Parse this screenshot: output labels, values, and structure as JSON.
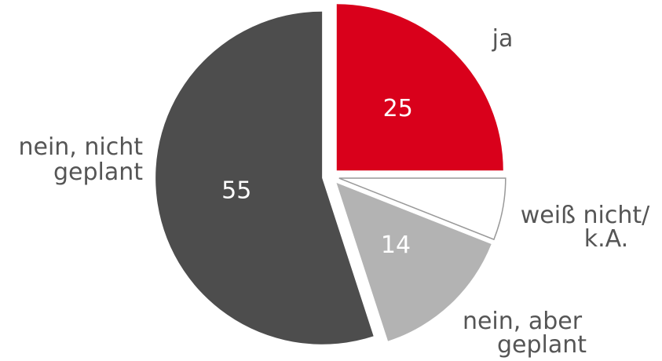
{
  "chart_data": {
    "type": "pie",
    "categories": [
      [
        "ja"
      ],
      [
        "weiß nicht/",
        "k.A."
      ],
      [
        "nein, aber",
        "geplant"
      ],
      [
        "nein, nicht",
        "geplant"
      ]
    ],
    "values": [
      25,
      6,
      14,
      55
    ],
    "value_labels": [
      "25",
      null,
      "14",
      "55"
    ],
    "colors": [
      "#d9001b",
      "#ffffff",
      "#b3b3b3",
      "#4d4d4d"
    ]
  }
}
